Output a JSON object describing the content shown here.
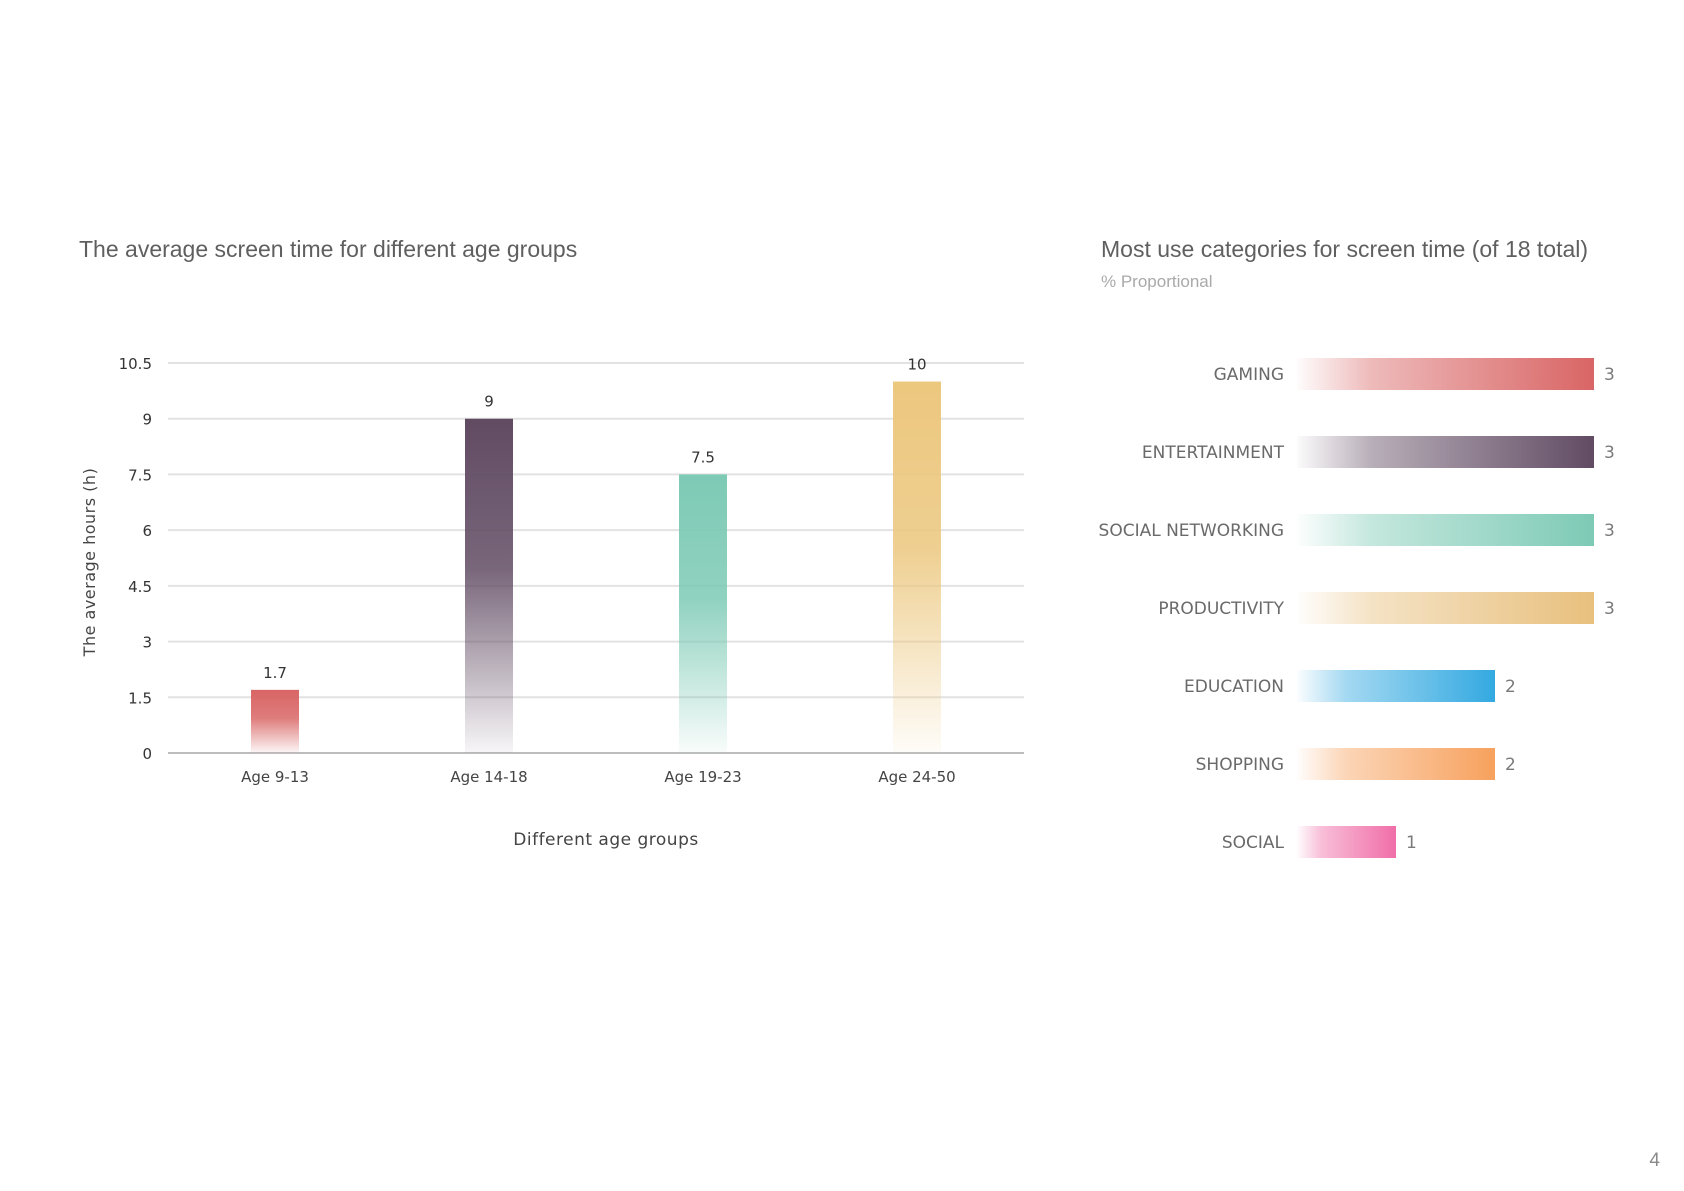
{
  "page_number": "4",
  "colors": {
    "text_dark": "#333333",
    "text_mid": "#5f5f5f",
    "text_light": "#a9a9a9",
    "grid": "#e2e2e2",
    "axis": "#bdbdbd"
  },
  "chart_data": [
    {
      "type": "bar",
      "title": "The average screen time for different age groups",
      "xlabel": "Different age groups",
      "ylabel": "The average hours (h)",
      "ylim": [
        0,
        10.5
      ],
      "yticks": [
        "0",
        "1.5",
        "3",
        "4.5",
        "6",
        "7.5",
        "9",
        "10.5"
      ],
      "grid": true,
      "categories": [
        "Age 9-13",
        "Age 14-18",
        "Age 19-23",
        "Age 24-50"
      ],
      "values": [
        1.7,
        9,
        7.5,
        10
      ],
      "value_labels": [
        "1.7",
        "9",
        "7.5",
        "10"
      ],
      "bar_colors": [
        "#d96565",
        "#614b63",
        "#7dcab5",
        "#ecc77e"
      ],
      "fill_style": "vertical gradient fading to white at the bottom"
    },
    {
      "type": "bar",
      "orientation": "horizontal",
      "title": "Most use categories for screen time (of 18 total)",
      "subtitle": "% Proportional",
      "categories": [
        "GAMING",
        "ENTERTAINMENT",
        "SOCIAL NETWORKING",
        "PRODUCTIVITY",
        "EDUCATION",
        "SHOPPING",
        "SOCIAL"
      ],
      "values": [
        3,
        3,
        3,
        3,
        2,
        2,
        1
      ],
      "value_labels": [
        "3",
        "3",
        "3",
        "3",
        "2",
        "2",
        "1"
      ],
      "xlim": [
        0,
        3
      ],
      "bar_colors": [
        "#d96565",
        "#614b63",
        "#7dcab5",
        "#e8c07e",
        "#33a9e1",
        "#f7a15d",
        "#f06ea8"
      ],
      "fill_style": "horizontal gradient fading to white on the left"
    }
  ]
}
